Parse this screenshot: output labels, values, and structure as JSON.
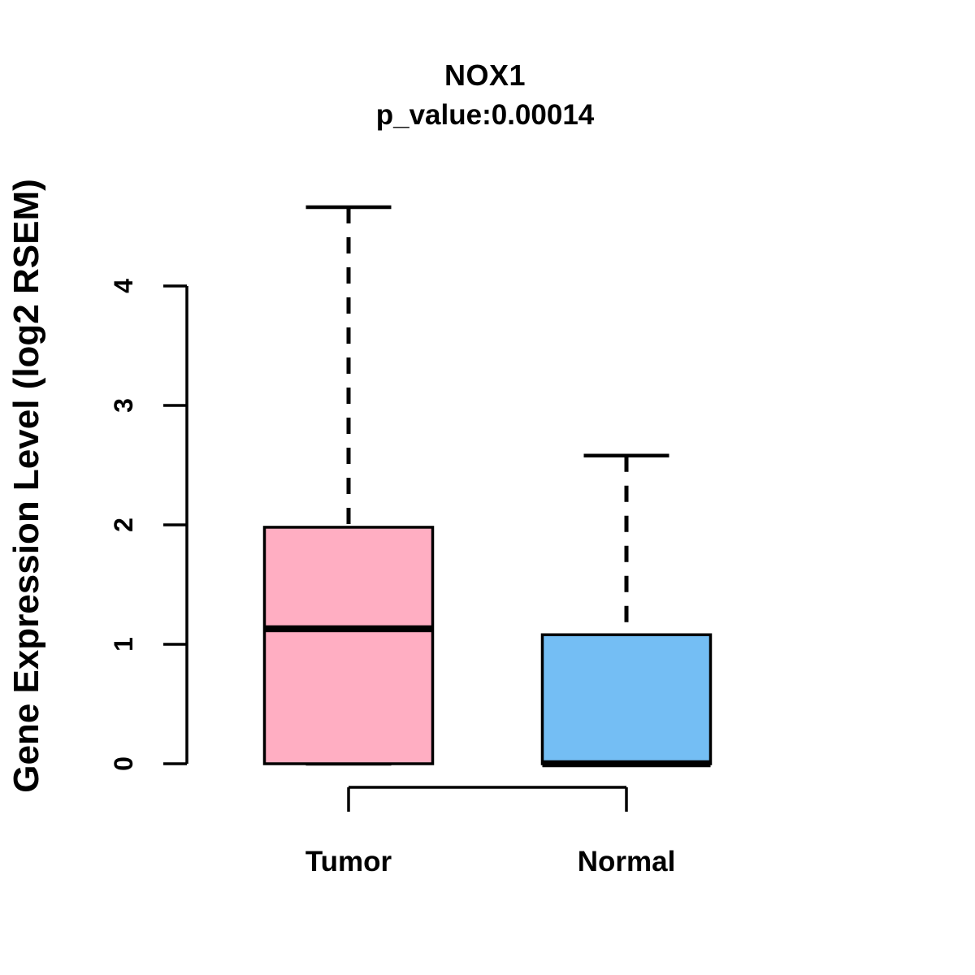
{
  "chart_data": {
    "type": "boxplot",
    "title": "NOX1",
    "subtitle": "p_value:0.00014",
    "ylabel": "Gene Expression Level (log2 RSEM)",
    "xlabel": "",
    "categories": [
      "Tumor",
      "Normal"
    ],
    "series": [
      {
        "name": "Tumor",
        "color": "#FFAEC2",
        "min": 0,
        "q1": 0,
        "median": 1.13,
        "q3": 1.98,
        "max": 4.66
      },
      {
        "name": "Normal",
        "color": "#74BEF4",
        "min": 0,
        "q1": 0,
        "median": 0,
        "q3": 1.08,
        "max": 2.58
      }
    ],
    "yticks": [
      0,
      1,
      2,
      3,
      4
    ],
    "ylim": [
      -0.25,
      4.8
    ],
    "grid": false,
    "legend": false,
    "p_value": 0.00014,
    "significance_bracket": {
      "from": "Tumor",
      "to": "Normal",
      "position": "below-axis"
    },
    "whisker_style": "dashed",
    "box_border_color": "#000000",
    "background_color": "#FFFFFF"
  }
}
